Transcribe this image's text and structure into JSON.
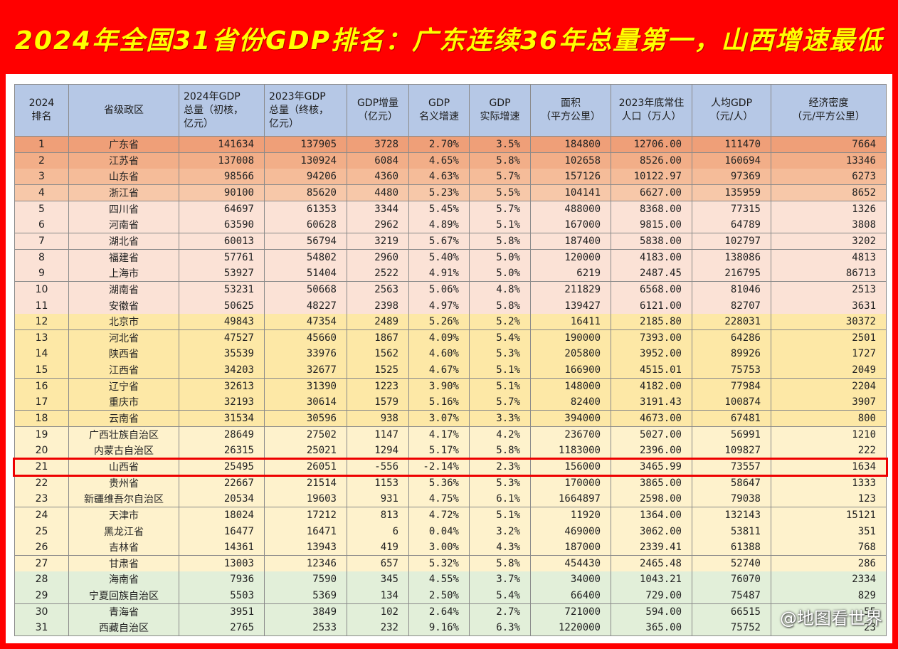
{
  "title": "2024年全国31省份GDP排名：广东连续36年总量第一，山西增速最低",
  "header": [
    [
      "2024",
      "排名"
    ],
    [
      "省级政区"
    ],
    [
      "2024年GDP",
      "总量（初核，",
      "亿元）"
    ],
    [
      "2023年GDP",
      "总量（终核，",
      "亿元）"
    ],
    [
      "GDP增量",
      "（亿元）"
    ],
    [
      "GDP",
      "名义增速"
    ],
    [
      "GDP",
      "实际增速"
    ],
    [
      "面积",
      "（平方公里）"
    ],
    [
      "2023年底常住",
      "人口（万人）"
    ],
    [
      "人均GDP",
      "（元/人）"
    ],
    [
      "经济密度",
      "（元/平方公里）"
    ]
  ],
  "rows": [
    [
      "1",
      "广东省",
      "141634",
      "137905",
      "3728",
      "2.70%",
      "3.5%",
      "184800",
      "12706.00",
      "111470",
      "7664"
    ],
    [
      "2",
      "江苏省",
      "137008",
      "130924",
      "6084",
      "4.65%",
      "5.8%",
      "102658",
      "8526.00",
      "160694",
      "13346"
    ],
    [
      "3",
      "山东省",
      "98566",
      "94206",
      "4360",
      "4.63%",
      "5.7%",
      "157126",
      "10122.97",
      "97369",
      "6273"
    ],
    [
      "4",
      "浙江省",
      "90100",
      "85620",
      "4480",
      "5.23%",
      "5.5%",
      "104141",
      "6627.00",
      "135959",
      "8652"
    ],
    [
      "5",
      "四川省",
      "64697",
      "61353",
      "3344",
      "5.45%",
      "5.7%",
      "488000",
      "8368.00",
      "77315",
      "1326"
    ],
    [
      "6",
      "河南省",
      "63590",
      "60628",
      "2962",
      "4.89%",
      "5.1%",
      "167000",
      "9815.00",
      "64789",
      "3808"
    ],
    [
      "7",
      "湖北省",
      "60013",
      "56794",
      "3219",
      "5.67%",
      "5.8%",
      "187400",
      "5838.00",
      "102797",
      "3202"
    ],
    [
      "8",
      "福建省",
      "57761",
      "54802",
      "2960",
      "5.40%",
      "5.0%",
      "120000",
      "4183.00",
      "138086",
      "4813"
    ],
    [
      "9",
      "上海市",
      "53927",
      "51404",
      "2522",
      "4.91%",
      "5.0%",
      "6219",
      "2487.45",
      "216795",
      "86713"
    ],
    [
      "10",
      "湖南省",
      "53231",
      "50668",
      "2563",
      "5.06%",
      "4.8%",
      "211829",
      "6568.00",
      "81046",
      "2513"
    ],
    [
      "11",
      "安徽省",
      "50625",
      "48227",
      "2398",
      "4.97%",
      "5.8%",
      "139427",
      "6121.00",
      "82707",
      "3631"
    ],
    [
      "12",
      "北京市",
      "49843",
      "47354",
      "2489",
      "5.26%",
      "5.2%",
      "16411",
      "2185.80",
      "228031",
      "30372"
    ],
    [
      "13",
      "河北省",
      "47527",
      "45660",
      "1867",
      "4.09%",
      "5.4%",
      "190000",
      "7393.00",
      "64286",
      "2501"
    ],
    [
      "14",
      "陕西省",
      "35539",
      "33976",
      "1562",
      "4.60%",
      "5.3%",
      "205800",
      "3952.00",
      "89926",
      "1727"
    ],
    [
      "15",
      "江西省",
      "34203",
      "32677",
      "1525",
      "4.67%",
      "5.1%",
      "166900",
      "4515.01",
      "75753",
      "2049"
    ],
    [
      "16",
      "辽宁省",
      "32613",
      "31390",
      "1223",
      "3.90%",
      "5.1%",
      "148000",
      "4182.00",
      "77984",
      "2204"
    ],
    [
      "17",
      "重庆市",
      "32193",
      "30614",
      "1579",
      "5.16%",
      "5.7%",
      "82400",
      "3191.43",
      "100874",
      "3907"
    ],
    [
      "18",
      "云南省",
      "31534",
      "30596",
      "938",
      "3.07%",
      "3.3%",
      "394000",
      "4673.00",
      "67481",
      "800"
    ],
    [
      "19",
      "广西壮族自治区",
      "28649",
      "27502",
      "1147",
      "4.17%",
      "4.2%",
      "236700",
      "5027.00",
      "56991",
      "1210"
    ],
    [
      "20",
      "内蒙古自治区",
      "26315",
      "25021",
      "1294",
      "5.17%",
      "5.8%",
      "1183000",
      "2396.00",
      "109827",
      "222"
    ],
    [
      "21",
      "山西省",
      "25495",
      "26051",
      "-556",
      "-2.14%",
      "2.3%",
      "156000",
      "3465.99",
      "73557",
      "1634"
    ],
    [
      "22",
      "贵州省",
      "22667",
      "21514",
      "1153",
      "5.36%",
      "5.3%",
      "170000",
      "3865.00",
      "58647",
      "1333"
    ],
    [
      "23",
      "新疆维吾尔自治区",
      "20534",
      "19603",
      "931",
      "4.75%",
      "6.1%",
      "1664897",
      "2598.00",
      "79038",
      "123"
    ],
    [
      "24",
      "天津市",
      "18024",
      "17212",
      "813",
      "4.72%",
      "5.1%",
      "11920",
      "1364.00",
      "132143",
      "15121"
    ],
    [
      "25",
      "黑龙江省",
      "16477",
      "16471",
      "6",
      "0.04%",
      "3.2%",
      "469000",
      "3062.00",
      "53811",
      "351"
    ],
    [
      "26",
      "吉林省",
      "14361",
      "13943",
      "419",
      "3.00%",
      "4.3%",
      "187000",
      "2339.41",
      "61388",
      "768"
    ],
    [
      "27",
      "甘肃省",
      "13003",
      "12346",
      "657",
      "5.32%",
      "5.8%",
      "454430",
      "2465.48",
      "52740",
      "286"
    ],
    [
      "28",
      "海南省",
      "7936",
      "7590",
      "345",
      "4.55%",
      "3.7%",
      "34000",
      "1043.21",
      "76070",
      "2334"
    ],
    [
      "29",
      "宁夏回族自治区",
      "5503",
      "5369",
      "134",
      "2.50%",
      "5.4%",
      "66400",
      "729.00",
      "75487",
      "829"
    ],
    [
      "30",
      "青海省",
      "3951",
      "3849",
      "102",
      "2.64%",
      "2.7%",
      "721000",
      "594.00",
      "66515",
      "55"
    ],
    [
      "31",
      "西藏自治区",
      "2765",
      "2533",
      "232",
      "9.16%",
      "6.3%",
      "1220000",
      "365.00",
      "75752",
      "23"
    ]
  ],
  "watermark": "@地图看世界"
}
